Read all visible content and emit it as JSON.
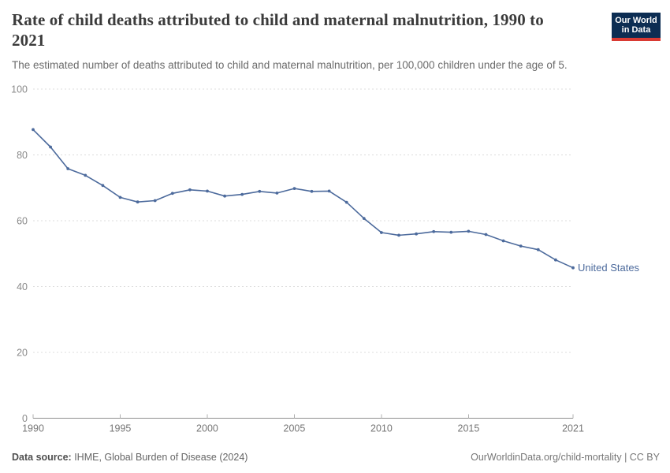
{
  "header": {
    "title": "Rate of child deaths attributed to child and maternal malnutrition, 1990 to 2021",
    "subtitle": "The estimated number of deaths attributed to child and maternal malnutrition, per 100,000 children under the age of 5."
  },
  "logo": {
    "line1": "Our World",
    "line2": "in Data"
  },
  "colors": {
    "line": "#4c6a9c",
    "grid": "#dcdcdc",
    "axis": "#8f8f8f",
    "tick_label": "#8a8a8a",
    "logo_bg": "#0c2d53",
    "logo_accent": "#d93a33"
  },
  "chart_data": {
    "type": "line",
    "title": "Rate of child deaths attributed to child and maternal malnutrition, 1990 to 2021",
    "subtitle": "The estimated number of deaths attributed to child and maternal malnutrition, per 100,000 children under the age of 5.",
    "xlabel": "",
    "ylabel": "",
    "ylim": [
      0,
      100
    ],
    "yticks": [
      0,
      20,
      40,
      60,
      80,
      100
    ],
    "xticks": [
      1990,
      1995,
      2000,
      2005,
      2010,
      2015,
      2021
    ],
    "grid": "horizontal-dashed",
    "legend_position": "end-of-line-label",
    "x": [
      1990,
      1991,
      1992,
      1993,
      1994,
      1995,
      1996,
      1997,
      1998,
      1999,
      2000,
      2001,
      2002,
      2003,
      2004,
      2005,
      2006,
      2007,
      2008,
      2009,
      2010,
      2011,
      2012,
      2013,
      2014,
      2015,
      2016,
      2017,
      2018,
      2019,
      2020,
      2021
    ],
    "series": [
      {
        "name": "United States",
        "values": [
          87.7,
          82.4,
          75.8,
          73.8,
          70.7,
          67.1,
          65.7,
          66.1,
          68.3,
          69.4,
          69.0,
          67.5,
          68.0,
          68.9,
          68.4,
          69.8,
          68.9,
          69.0,
          65.6,
          60.7,
          56.4,
          55.6,
          56.0,
          56.7,
          56.5,
          56.8,
          55.8,
          53.9,
          52.3,
          51.2,
          48.1,
          45.7
        ]
      }
    ]
  },
  "footer": {
    "datasource_label": "Data source:",
    "datasource_value": " IHME, Global Burden of Disease (2024)",
    "credit": "OurWorldinData.org/child-mortality | CC BY"
  }
}
